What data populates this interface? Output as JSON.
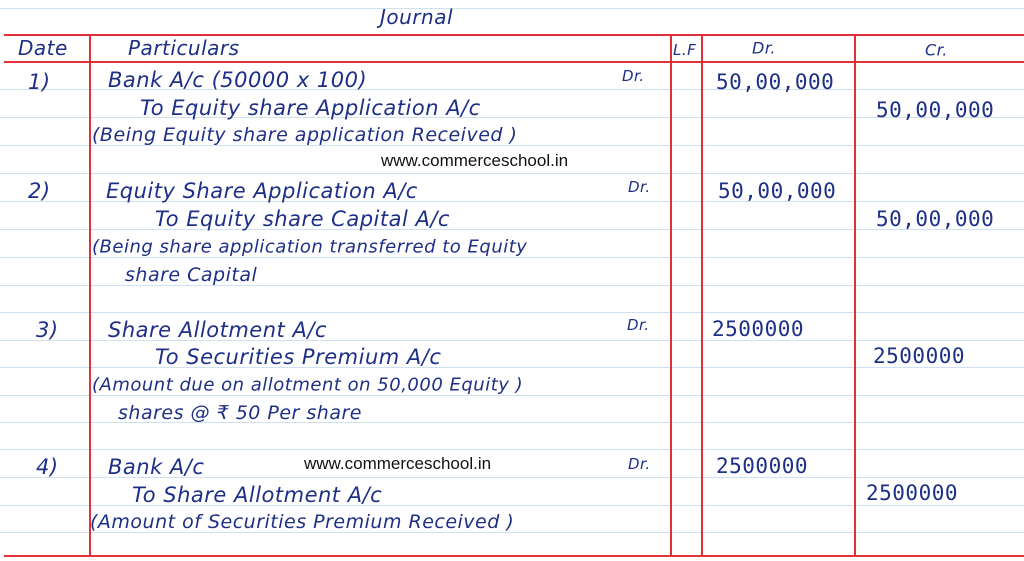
{
  "title": "Journal",
  "headers": {
    "date": "Date",
    "particulars": "Particulars",
    "lf": "L.F",
    "dr": "Dr.",
    "cr": "Cr."
  },
  "watermark": "www.commerceschool.in",
  "entries": [
    {
      "no": "1)",
      "debit_line": "Bank A/c (50000 x 100)",
      "dr_mark": "Dr.",
      "credit_line": "To Equity share Application A/c",
      "narration": [
        "(Being Equity share application Received )"
      ],
      "dr_amount": "50,00,000",
      "cr_amount": "50,00,000"
    },
    {
      "no": "2)",
      "debit_line": "Equity Share Application A/c",
      "dr_mark": "Dr.",
      "credit_line": "To Equity share Capital A/c",
      "narration": [
        "(Being share application transferred to Equity",
        "share Capital"
      ],
      "dr_amount": "50,00,000",
      "cr_amount": "50,00,000"
    },
    {
      "no": "3)",
      "debit_line": "Share Allotment A/c",
      "dr_mark": "Dr.",
      "credit_line": "To Securities Premium A/c",
      "narration": [
        "(Amount due on allotment on 50,000 Equity )",
        "shares @ ₹ 50 Per share"
      ],
      "dr_amount": "2500000",
      "cr_amount": "2500000"
    },
    {
      "no": "4)",
      "debit_line": "Bank A/c",
      "dr_mark": "Dr.",
      "credit_line": "To Share Allotment A/c",
      "narration": [
        "(Amount of Securities Premium Received )"
      ],
      "dr_amount": "2500000",
      "cr_amount": "2500000"
    }
  ]
}
